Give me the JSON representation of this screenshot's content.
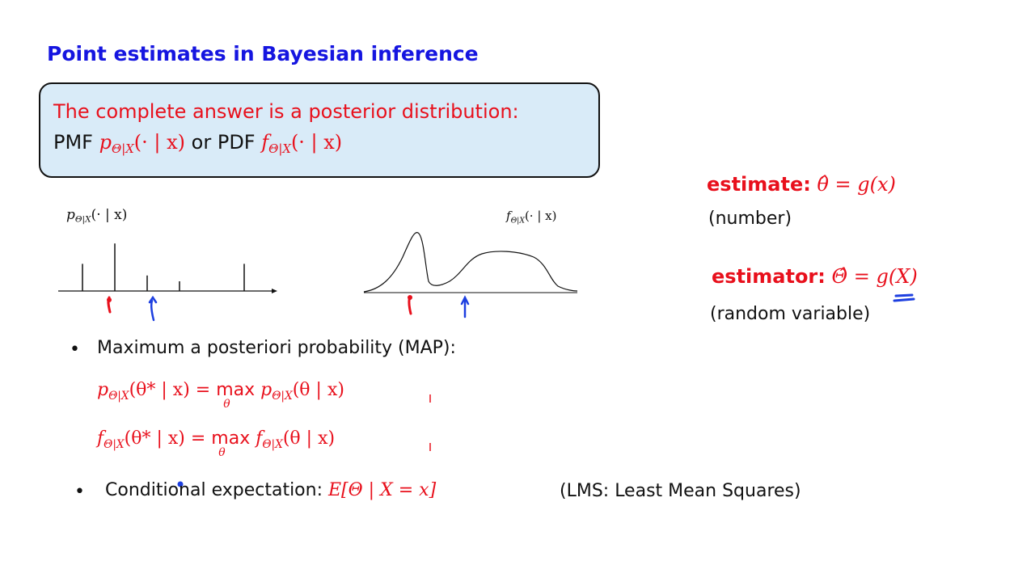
{
  "slide": {
    "title": "Point estimates in Bayesian inference"
  },
  "box": {
    "line1": "The complete answer is a posterior distribution:",
    "pmf_word": "PMF",
    "or_pdf_word": "or PDF",
    "pmf_expr": "p",
    "pmf_sub": "Θ|X",
    "pmf_args": "(· | x)",
    "pdf_expr": "f",
    "pdf_sub": "Θ|X",
    "pdf_args": "(· | x)"
  },
  "plots": {
    "left_label": {
      "base": "p",
      "sub": "Θ|X",
      "args": "(· | x)"
    },
    "right_label": {
      "base": "f",
      "sub": "Θ|X",
      "args": "(· | x)"
    },
    "pmf_stems": [
      {
        "x": 1,
        "height": 0.56
      },
      {
        "x": 2,
        "height": 0.98
      },
      {
        "x": 3,
        "height": 0.32
      },
      {
        "x": 4,
        "height": 0.2
      },
      {
        "x": 6,
        "height": 0.56
      }
    ],
    "colors": {
      "map_marker": "#e8101c",
      "lms_marker": "#1d3fe0"
    }
  },
  "estimates": {
    "estimate_label": "estimate:",
    "estimate_expr": "θ̂ = g(x)",
    "estimate_note": "(number)",
    "estimator_label": "estimator:",
    "estimator_expr": "Θ̂ = g(X)",
    "estimator_note": "(random variable)"
  },
  "bullets": {
    "map": "Maximum a posteriori probability (MAP):",
    "map_eq1_lhs": "p",
    "map_eq1_rhs": "p",
    "map_eq2_lhs": "f",
    "map_eq2_rhs": "f",
    "sub": "Θ|X",
    "arg_star": "(θ* | x) =",
    "max": "max",
    "max_sub": "θ",
    "arg": "(θ | x)",
    "lms_label": "Conditional expectation:",
    "lms_expr": "E[Θ | X = x]",
    "lms_note": "(LMS: Least Mean Squares)"
  },
  "colors": {
    "title": "#1515e0",
    "emphasis": "#e8101c",
    "box_fill": "#d9ebf8",
    "annotation": "#1d3fe0"
  }
}
